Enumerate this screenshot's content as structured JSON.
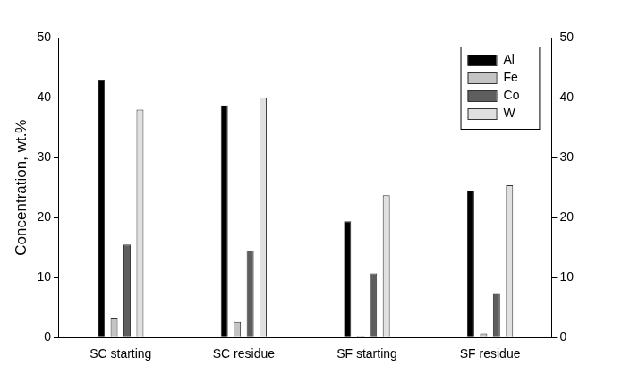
{
  "chart_data": {
    "type": "bar",
    "y_label": "Concentration, wt.%",
    "categories": [
      "SC starting",
      "SC residue",
      "SF starting",
      "SF residue"
    ],
    "series": [
      {
        "name": "Al",
        "color": "#000000",
        "values": [
          43,
          38.7,
          19.4,
          24.5
        ]
      },
      {
        "name": "Fe",
        "color": "#c4c4c4",
        "values": [
          3.3,
          2.6,
          0.3,
          0.7
        ]
      },
      {
        "name": "Co",
        "color": "#5e5e5e",
        "values": [
          15.5,
          14.5,
          10.7,
          7.4
        ]
      },
      {
        "name": "W",
        "color": "#e0e0e0",
        "values": [
          38,
          40,
          23.7,
          25.4
        ]
      }
    ],
    "ylim": [
      0,
      50
    ],
    "yticks": [
      0,
      10,
      20,
      30,
      40,
      50
    ],
    "y2lim": [
      0,
      50
    ],
    "y2ticks": [
      0,
      10,
      20,
      30,
      40,
      50
    ],
    "grid": false,
    "legend": "upper right"
  }
}
